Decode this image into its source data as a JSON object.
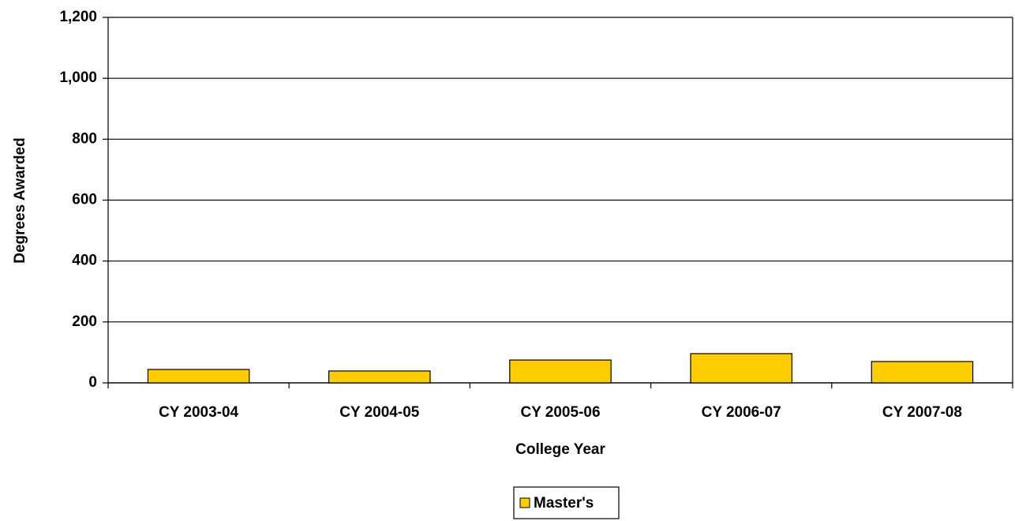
{
  "chart_data": {
    "type": "bar",
    "x_label": "College Year",
    "y_label": "Degrees Awarded",
    "categories": [
      "CY 2003-04",
      "CY 2004-05",
      "CY 2005-06",
      "CY 2006-07",
      "CY 2007-08"
    ],
    "series": [
      {
        "name": "Master's",
        "color": "#ffcc00",
        "values": [
          44,
          39,
          75,
          96,
          70
        ]
      }
    ],
    "ylim": [
      0,
      1200
    ],
    "yticks": [
      0,
      200,
      400,
      600,
      800,
      {
        "value": 1000,
        "label": "1,000"
      },
      {
        "value": 1200,
        "label": "1,200"
      }
    ],
    "grid": true,
    "legend": "bottom"
  }
}
